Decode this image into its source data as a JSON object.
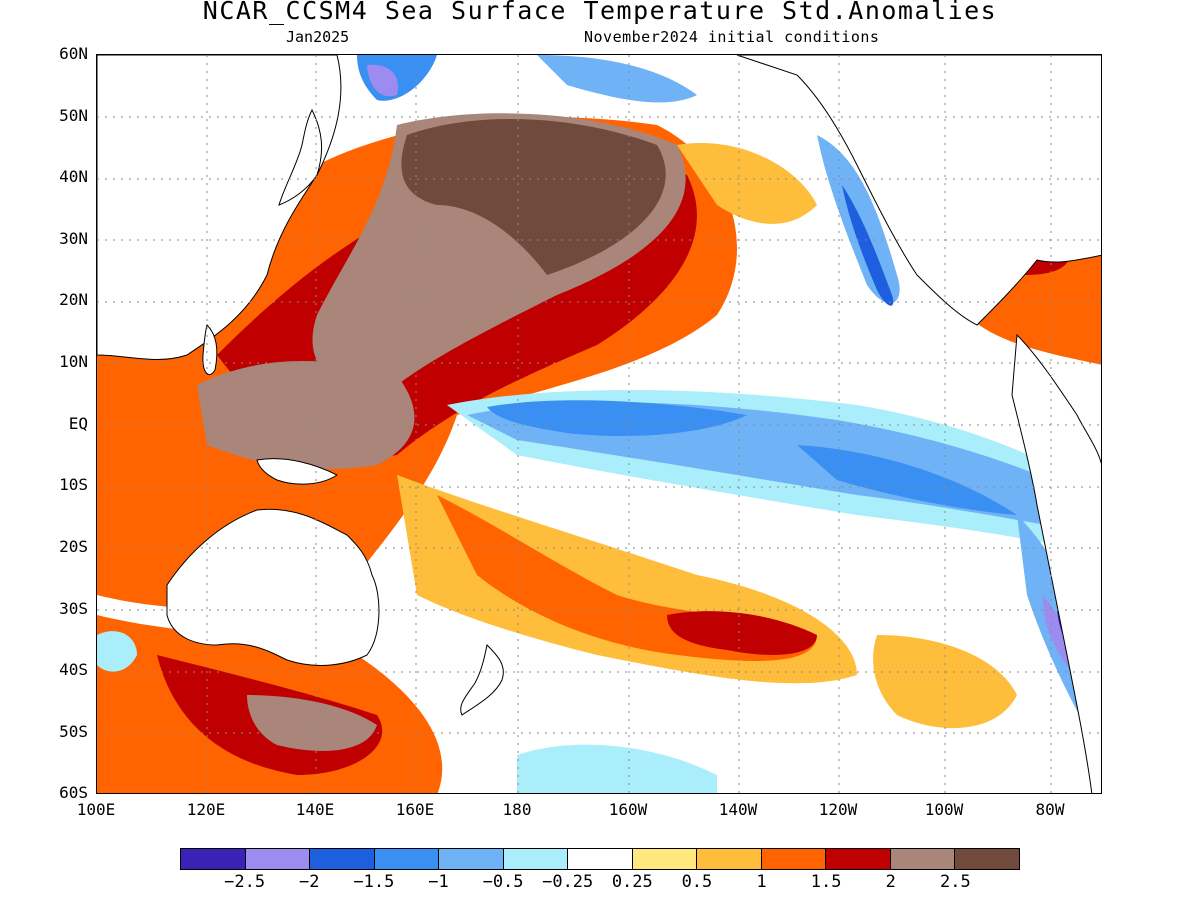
{
  "title": "NCAR_CCSM4 Sea Surface Temperature Std.Anomalies",
  "subtitle_left": "Jan2025",
  "subtitle_right": "November2024 initial conditions",
  "map": {
    "lon_range": [
      "100E",
      "70W"
    ],
    "lat_range": [
      "60S",
      "60N"
    ],
    "grid": true,
    "lat_labels": [
      "60N",
      "50N",
      "40N",
      "30N",
      "20N",
      "10N",
      "EQ",
      "10S",
      "20S",
      "30S",
      "40S",
      "50S",
      "60S"
    ],
    "lon_labels": [
      "100E",
      "120E",
      "140E",
      "160E",
      "180",
      "160W",
      "140W",
      "120W",
      "100W",
      "80W"
    ]
  },
  "colorbar": {
    "colors": [
      "#3b22b6",
      "#9c8cf0",
      "#1e5fe0",
      "#3a8ff2",
      "#6fb2f5",
      "#aaeefb",
      "#ffffff",
      "#ffe87d",
      "#ffbd3c",
      "#ff6400",
      "#c00000",
      "#a98679",
      "#704a3c"
    ],
    "labels": [
      "−2.5",
      "−2",
      "−1.5",
      "−1",
      "−0.5",
      "−0.25",
      "0.25",
      "0.5",
      "1",
      "1.5",
      "2",
      "2.5"
    ]
  }
}
